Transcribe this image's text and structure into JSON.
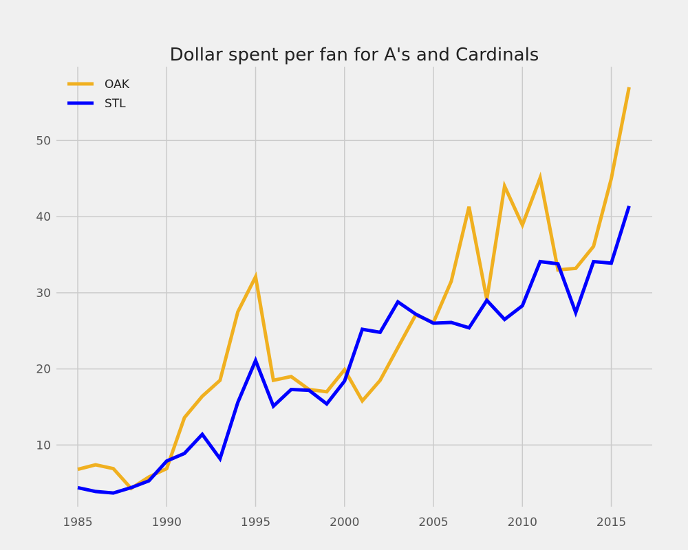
{
  "chart_data": {
    "type": "line",
    "title": "Dollar spent per fan for A's and Cardinals",
    "xlabel": "",
    "ylabel": "",
    "xlim": [
      1983.8,
      2017.3
    ],
    "ylim": [
      1.9,
      59.7
    ],
    "x_ticks": [
      1985,
      1990,
      1995,
      2000,
      2005,
      2010,
      2015
    ],
    "y_ticks": [
      10,
      20,
      30,
      40,
      50
    ],
    "grid": true,
    "legend_position": "top-left",
    "x": [
      1985,
      1986,
      1987,
      1988,
      1989,
      1990,
      1991,
      1992,
      1993,
      1994,
      1995,
      1996,
      1997,
      1998,
      1999,
      2000,
      2001,
      2002,
      2003,
      2004,
      2005,
      2006,
      2007,
      2008,
      2009,
      2010,
      2011,
      2012,
      2013,
      2014,
      2015,
      2016
    ],
    "series": [
      {
        "name": "OAK",
        "color": "#f0b020",
        "values": [
          6.8,
          7.4,
          6.9,
          4.3,
          5.8,
          6.9,
          13.6,
          16.4,
          18.5,
          27.5,
          32.1,
          18.5,
          19.0,
          17.3,
          17.0,
          19.9,
          15.8,
          18.5,
          22.8,
          27.1,
          26.1,
          31.5,
          41.3,
          29.1,
          44.0,
          38.9,
          45.1,
          33.0,
          33.2,
          36.1,
          45.0,
          57.0
        ]
      },
      {
        "name": "STL",
        "color": "#0000ff",
        "values": [
          4.4,
          3.9,
          3.7,
          4.4,
          5.3,
          7.9,
          8.9,
          11.4,
          8.2,
          15.6,
          21.1,
          15.1,
          17.3,
          17.2,
          15.4,
          18.4,
          25.2,
          24.8,
          28.8,
          27.2,
          26.0,
          26.1,
          25.4,
          29.0,
          26.5,
          28.3,
          34.1,
          33.8,
          27.4,
          34.1,
          33.9,
          41.4
        ]
      }
    ]
  }
}
